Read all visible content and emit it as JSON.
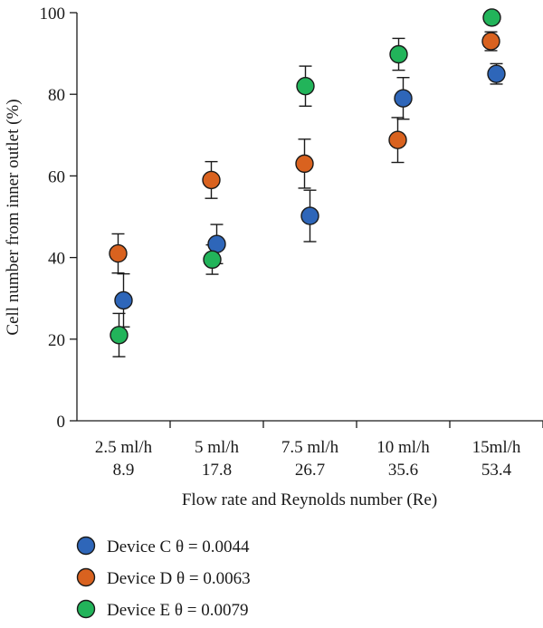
{
  "chart_data": {
    "type": "scatter",
    "ylabel": "Cell number from inner outlet (%)",
    "xlabel": "Flow rate and Reynolds number (Re)",
    "ylim": [
      0,
      100
    ],
    "yticks": [
      "0",
      "20",
      "40",
      "60",
      "80",
      "100"
    ],
    "categories": [
      {
        "flow": "2.5 ml/h",
        "re": "8.9"
      },
      {
        "flow": "5 ml/h",
        "re": "17.8"
      },
      {
        "flow": "7.5 ml/h",
        "re": "26.7"
      },
      {
        "flow": "10 ml/h",
        "re": "35.6"
      },
      {
        "flow": "15ml/h",
        "re": "53.4"
      }
    ],
    "series": [
      {
        "name": "Device C θ = 0.0044",
        "color": "#2e66b9",
        "values": [
          29.5,
          43.3,
          50.2,
          79.0,
          85.0
        ],
        "err": [
          6.5,
          4.8,
          6.3,
          5.1,
          2.5
        ]
      },
      {
        "name": "Device D θ = 0.0063",
        "color": "#d9621f",
        "values": [
          41.0,
          59.0,
          63.0,
          68.8,
          93.0
        ],
        "err": [
          4.8,
          4.5,
          6.0,
          5.5,
          2.3
        ]
      },
      {
        "name": "Device E θ = 0.0079",
        "color": "#22b45a",
        "values": [
          21.0,
          39.5,
          82.0,
          89.8,
          98.8
        ],
        "err": [
          5.3,
          3.6,
          4.9,
          3.9,
          0
        ]
      }
    ],
    "legend_position": "bottom-left",
    "grid": false
  }
}
